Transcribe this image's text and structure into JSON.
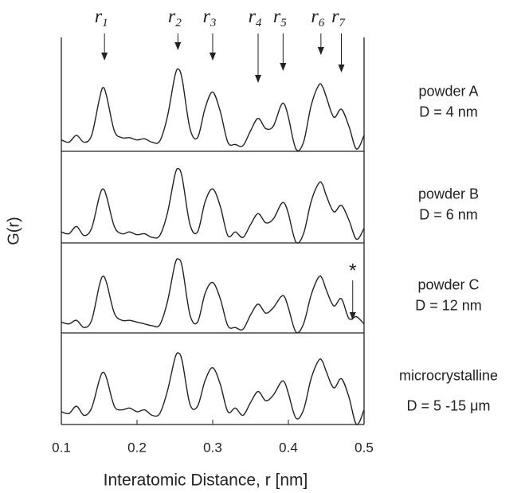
{
  "chart_data": {
    "type": "line",
    "xlabel": "Interatomic Distance, r  [nm]",
    "ylabel": "G(r)",
    "x": [
      0.1,
      0.11,
      0.12,
      0.13,
      0.14,
      0.15,
      0.155,
      0.16,
      0.17,
      0.18,
      0.19,
      0.2,
      0.21,
      0.22,
      0.23,
      0.24,
      0.25,
      0.255,
      0.26,
      0.27,
      0.28,
      0.29,
      0.3,
      0.31,
      0.32,
      0.33,
      0.34,
      0.35,
      0.36,
      0.37,
      0.38,
      0.39,
      0.395,
      0.4,
      0.41,
      0.42,
      0.43,
      0.44,
      0.445,
      0.45,
      0.46,
      0.47,
      0.48,
      0.49,
      0.5
    ],
    "xlim": [
      0.1,
      0.5
    ],
    "xticks": [
      0.1,
      0.2,
      0.3,
      0.4,
      0.5
    ],
    "ylim": [
      0,
      100
    ],
    "series": [
      {
        "name": "powder A",
        "size": "D = 4 nm",
        "color": "#222222",
        "values": [
          10,
          8,
          14,
          8,
          14,
          45,
          56,
          48,
          18,
          12,
          12,
          10,
          11,
          8,
          9,
          30,
          66,
          72,
          62,
          20,
          12,
          38,
          52,
          35,
          8,
          6,
          5,
          18,
          29,
          20,
          22,
          40,
          41,
          30,
          2,
          8,
          40,
          58,
          57,
          48,
          30,
          37,
          22,
          2,
          14
        ]
      },
      {
        "name": "powder B",
        "size": "D = 6 nm",
        "color": "#222222",
        "values": [
          12,
          10,
          18,
          8,
          16,
          50,
          59,
          50,
          18,
          10,
          12,
          9,
          10,
          6,
          8,
          32,
          74,
          81,
          70,
          20,
          12,
          45,
          59,
          40,
          8,
          12,
          6,
          20,
          32,
          22,
          26,
          42,
          43,
          32,
          1,
          10,
          45,
          65,
          64,
          52,
          34,
          41,
          25,
          4,
          16
        ]
      },
      {
        "name": "powder C",
        "size": "D = 12 nm",
        "color": "#222222",
        "values": [
          12,
          10,
          14,
          6,
          14,
          52,
          63,
          55,
          22,
          14,
          14,
          12,
          10,
          8,
          9,
          34,
          76,
          82,
          72,
          20,
          12,
          44,
          56,
          38,
          8,
          6,
          4,
          20,
          32,
          22,
          28,
          40,
          40,
          28,
          1,
          10,
          42,
          62,
          60,
          48,
          30,
          38,
          16,
          18,
          10
        ],
        "note": {
          "text": "*",
          "x": 0.485
        }
      },
      {
        "name": "microcrystalline",
        "size": "D = 5 -15 μm",
        "color": "#222222",
        "values": [
          14,
          12,
          20,
          10,
          18,
          48,
          57,
          50,
          20,
          16,
          18,
          14,
          16,
          10,
          12,
          36,
          72,
          78,
          68,
          22,
          20,
          48,
          62,
          44,
          14,
          18,
          10,
          24,
          36,
          26,
          32,
          46,
          46,
          34,
          7,
          16,
          50,
          70,
          69,
          58,
          40,
          50,
          30,
          0,
          16
        ]
      }
    ],
    "annotations": [
      {
        "text": "r",
        "sub": "1",
        "x": 0.157
      },
      {
        "text": "r",
        "sub": "2",
        "x": 0.254
      },
      {
        "text": "r",
        "sub": "3",
        "x": 0.3
      },
      {
        "text": "r",
        "sub": "4",
        "x": 0.36
      },
      {
        "text": "r",
        "sub": "5",
        "x": 0.393
      },
      {
        "text": "r",
        "sub": "6",
        "x": 0.443
      },
      {
        "text": "r",
        "sub": "7",
        "x": 0.47
      }
    ]
  }
}
